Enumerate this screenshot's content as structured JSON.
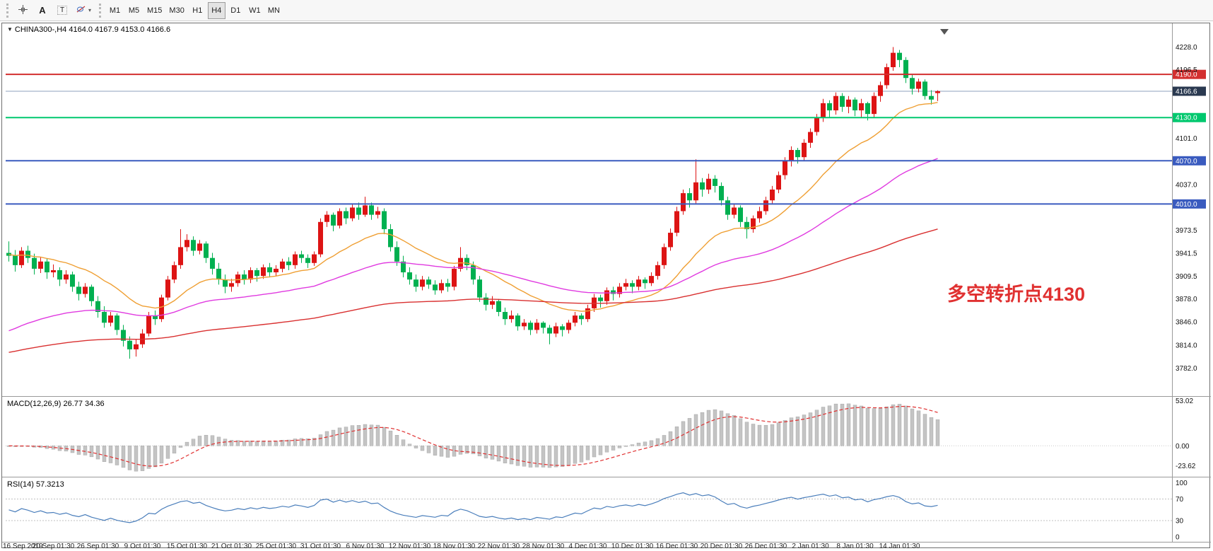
{
  "toolbar": {
    "tools": [
      {
        "name": "crosshair-tool"
      },
      {
        "name": "text-tool",
        "label": "A"
      },
      {
        "name": "label-tool",
        "label": "T"
      },
      {
        "name": "shapes-tool"
      }
    ],
    "timeframes": [
      "M1",
      "M5",
      "M15",
      "M30",
      "H1",
      "H4",
      "D1",
      "W1",
      "MN"
    ],
    "active_timeframe": "H4",
    "dropdown_arrow": "▾"
  },
  "chart": {
    "title_symbol": "CHINA300-,H4",
    "title_ohlc": "4164.0 4167.9 4153.0 4166.6",
    "collapse_arrow": "▼",
    "annotation": {
      "text": "多空转折点4130",
      "color": "#e03131"
    }
  },
  "chart_data": {
    "type": "candlestick",
    "symbol": "CHINA300-,H4",
    "timeframe": "H4",
    "current_ohlc": {
      "open": 4164.0,
      "high": 4167.9,
      "low": 4153.0,
      "close": 4166.6
    },
    "bull_color": "#dd1414",
    "bear_color": "#00b050",
    "x_labels": [
      "16 Sep 2019",
      "20 Sep 01:30",
      "26 Sep 01:30",
      "9 Oct 01:30",
      "15 Oct 01:30",
      "21 Oct 01:30",
      "25 Oct 01:30",
      "31 Oct 01:30",
      "6 Nov 01:30",
      "12 Nov 01:30",
      "18 Nov 01:30",
      "22 Nov 01:30",
      "28 Nov 01:30",
      "4 Dec 01:30",
      "10 Dec 01:30",
      "16 Dec 01:30",
      "20 Dec 01:30",
      "26 Dec 01:30",
      "2 Jan 01:30",
      "8 Jan 01:30",
      "14 Jan 01:30"
    ],
    "label_every": 7,
    "y_range": [
      3747,
      4256
    ],
    "y_ticks": [
      "4228.0",
      "4196.5",
      "4101.0",
      "4037.0",
      "3973.5",
      "3941.5",
      "3909.5",
      "3878.0",
      "3846.0",
      "3814.0",
      "3782.0"
    ],
    "hlines": [
      {
        "value": 4190.0,
        "label": "4190.0",
        "color": "#d32f2f"
      },
      {
        "value": 4130.0,
        "label": "4130.0",
        "color": "#00c86e"
      },
      {
        "value": 4070.0,
        "label": "4070.0",
        "color": "#3a5bbf"
      },
      {
        "value": 4010.0,
        "label": "4010.0",
        "color": "#3a5bbf"
      }
    ],
    "current_price": {
      "value": 4166.6,
      "label": "4166.6",
      "line_color": "#8fa2bd",
      "tag_bg": "#2a3950"
    },
    "moving_averages": [
      {
        "name": "ema-fast",
        "period": 20,
        "seed": 3940,
        "color": "#ef9f33"
      },
      {
        "name": "ema-mid",
        "period": 55,
        "seed": 3830,
        "color": "#e03ae0"
      },
      {
        "name": "ema-slow",
        "period": 150,
        "seed": 3802,
        "color": "#d93030"
      }
    ],
    "candles": [
      [
        3942,
        3958,
        3930,
        3938
      ],
      [
        3938,
        3946,
        3916,
        3925
      ],
      [
        3925,
        3950,
        3921,
        3945
      ],
      [
        3945,
        3952,
        3928,
        3935
      ],
      [
        3935,
        3941,
        3912,
        3920
      ],
      [
        3920,
        3936,
        3914,
        3930
      ],
      [
        3930,
        3934,
        3906,
        3915
      ],
      [
        3915,
        3926,
        3908,
        3918
      ],
      [
        3918,
        3922,
        3896,
        3905
      ],
      [
        3905,
        3918,
        3899,
        3912
      ],
      [
        3912,
        3916,
        3888,
        3895
      ],
      [
        3895,
        3902,
        3876,
        3885
      ],
      [
        3885,
        3900,
        3880,
        3895
      ],
      [
        3895,
        3898,
        3868,
        3875
      ],
      [
        3875,
        3882,
        3852,
        3860
      ],
      [
        3860,
        3868,
        3838,
        3845
      ],
      [
        3845,
        3860,
        3840,
        3855
      ],
      [
        3855,
        3858,
        3828,
        3835
      ],
      [
        3835,
        3842,
        3812,
        3820
      ],
      [
        3820,
        3826,
        3795,
        3808
      ],
      [
        3808,
        3822,
        3798,
        3815
      ],
      [
        3815,
        3836,
        3810,
        3830
      ],
      [
        3830,
        3860,
        3826,
        3855
      ],
      [
        3855,
        3862,
        3842,
        3850
      ],
      [
        3850,
        3884,
        3846,
        3880
      ],
      [
        3880,
        3910,
        3876,
        3905
      ],
      [
        3905,
        3930,
        3900,
        3925
      ],
      [
        3925,
        3975,
        3920,
        3950
      ],
      [
        3950,
        3968,
        3944,
        3960
      ],
      [
        3960,
        3965,
        3938,
        3945
      ],
      [
        3945,
        3960,
        3940,
        3955
      ],
      [
        3955,
        3958,
        3928,
        3935
      ],
      [
        3935,
        3942,
        3912,
        3920
      ],
      [
        3920,
        3928,
        3898,
        3905
      ],
      [
        3905,
        3912,
        3886,
        3895
      ],
      [
        3895,
        3906,
        3888,
        3900
      ],
      [
        3900,
        3916,
        3895,
        3912
      ],
      [
        3912,
        3918,
        3898,
        3905
      ],
      [
        3905,
        3922,
        3900,
        3918
      ],
      [
        3918,
        3921,
        3902,
        3910
      ],
      [
        3910,
        3926,
        3906,
        3922
      ],
      [
        3922,
        3928,
        3908,
        3915
      ],
      [
        3915,
        3925,
        3910,
        3920
      ],
      [
        3920,
        3934,
        3915,
        3930
      ],
      [
        3930,
        3936,
        3918,
        3925
      ],
      [
        3925,
        3944,
        3920,
        3940
      ],
      [
        3940,
        3945,
        3928,
        3935
      ],
      [
        3935,
        3940,
        3921,
        3928
      ],
      [
        3928,
        3944,
        3924,
        3940
      ],
      [
        3940,
        3990,
        3936,
        3985
      ],
      [
        3985,
        4000,
        3978,
        3995
      ],
      [
        3995,
        3998,
        3972,
        3980
      ],
      [
        3980,
        4004,
        3976,
        4000
      ],
      [
        4000,
        4005,
        3982,
        3990
      ],
      [
        3990,
        4010,
        3986,
        4005
      ],
      [
        4005,
        4012,
        3988,
        3995
      ],
      [
        3995,
        4020,
        3992,
        4008
      ],
      [
        4008,
        4012,
        3988,
        3995
      ],
      [
        3995,
        4006,
        3990,
        4000
      ],
      [
        4000,
        4004,
        3968,
        3975
      ],
      [
        3975,
        3982,
        3944,
        3950
      ],
      [
        3950,
        3958,
        3924,
        3930
      ],
      [
        3930,
        3938,
        3908,
        3915
      ],
      [
        3915,
        3922,
        3898,
        3905
      ],
      [
        3905,
        3912,
        3888,
        3895
      ],
      [
        3895,
        3910,
        3890,
        3905
      ],
      [
        3905,
        3909,
        3892,
        3898
      ],
      [
        3898,
        3904,
        3884,
        3890
      ],
      [
        3890,
        3905,
        3886,
        3900
      ],
      [
        3900,
        3906,
        3888,
        3895
      ],
      [
        3895,
        3924,
        3890,
        3920
      ],
      [
        3920,
        3950,
        3916,
        3935
      ],
      [
        3935,
        3940,
        3918,
        3925
      ],
      [
        3925,
        3930,
        3898,
        3905
      ],
      [
        3905,
        3910,
        3874,
        3880
      ],
      [
        3880,
        3886,
        3862,
        3870
      ],
      [
        3870,
        3882,
        3864,
        3875
      ],
      [
        3875,
        3878,
        3854,
        3860
      ],
      [
        3860,
        3866,
        3842,
        3850
      ],
      [
        3850,
        3862,
        3845,
        3855
      ],
      [
        3855,
        3858,
        3834,
        3840
      ],
      [
        3840,
        3850,
        3835,
        3845
      ],
      [
        3845,
        3848,
        3828,
        3835
      ],
      [
        3835,
        3850,
        3830,
        3845
      ],
      [
        3845,
        3847,
        3830,
        3838
      ],
      [
        3838,
        3842,
        3815,
        3830
      ],
      [
        3830,
        3845,
        3825,
        3840
      ],
      [
        3840,
        3843,
        3826,
        3835
      ],
      [
        3835,
        3849,
        3830,
        3845
      ],
      [
        3845,
        3860,
        3840,
        3855
      ],
      [
        3855,
        3858,
        3842,
        3850
      ],
      [
        3850,
        3870,
        3846,
        3865
      ],
      [
        3865,
        3885,
        3860,
        3880
      ],
      [
        3880,
        3884,
        3866,
        3875
      ],
      [
        3875,
        3894,
        3870,
        3890
      ],
      [
        3890,
        3895,
        3876,
        3885
      ],
      [
        3885,
        3900,
        3880,
        3895
      ],
      [
        3895,
        3906,
        3890,
        3900
      ],
      [
        3900,
        3904,
        3886,
        3895
      ],
      [
        3895,
        3910,
        3890,
        3905
      ],
      [
        3905,
        3908,
        3892,
        3900
      ],
      [
        3900,
        3915,
        3896,
        3910
      ],
      [
        3910,
        3930,
        3905,
        3925
      ],
      [
        3925,
        3955,
        3920,
        3950
      ],
      [
        3950,
        3976,
        3945,
        3970
      ],
      [
        3970,
        4006,
        3965,
        4000
      ],
      [
        4000,
        4030,
        3995,
        4025
      ],
      [
        4025,
        4032,
        4005,
        4015
      ],
      [
        4015,
        4072,
        4010,
        4040
      ],
      [
        4040,
        4046,
        4020,
        4030
      ],
      [
        4030,
        4052,
        4024,
        4045
      ],
      [
        4045,
        4050,
        4026,
        4035
      ],
      [
        4035,
        4040,
        4008,
        4015
      ],
      [
        4015,
        4020,
        3988,
        3995
      ],
      [
        3995,
        4010,
        3990,
        4005
      ],
      [
        4005,
        4008,
        3978,
        3985
      ],
      [
        3985,
        3992,
        3962,
        3975
      ],
      [
        3975,
        3994,
        3970,
        3990
      ],
      [
        3990,
        4006,
        3984,
        4000
      ],
      [
        4000,
        4020,
        3995,
        4015
      ],
      [
        4015,
        4035,
        4010,
        4030
      ],
      [
        4030,
        4055,
        4025,
        4050
      ],
      [
        4050,
        4075,
        4044,
        4070
      ],
      [
        4070,
        4090,
        4062,
        4085
      ],
      [
        4085,
        4088,
        4066,
        4075
      ],
      [
        4075,
        4100,
        4070,
        4095
      ],
      [
        4095,
        4115,
        4088,
        4110
      ],
      [
        4110,
        4135,
        4105,
        4130
      ],
      [
        4130,
        4156,
        4124,
        4150
      ],
      [
        4150,
        4154,
        4130,
        4140
      ],
      [
        4140,
        4165,
        4134,
        4160
      ],
      [
        4160,
        4164,
        4138,
        4145
      ],
      [
        4145,
        4160,
        4136,
        4155
      ],
      [
        4155,
        4158,
        4132,
        4140
      ],
      [
        4140,
        4156,
        4130,
        4150
      ],
      [
        4150,
        4152,
        4126,
        4135
      ],
      [
        4135,
        4165,
        4130,
        4160
      ],
      [
        4160,
        4180,
        4152,
        4175
      ],
      [
        4175,
        4205,
        4170,
        4200
      ],
      [
        4200,
        4228,
        4195,
        4220
      ],
      [
        4220,
        4224,
        4200,
        4210
      ],
      [
        4210,
        4214,
        4178,
        4185
      ],
      [
        4185,
        4190,
        4162,
        4170
      ],
      [
        4170,
        4184,
        4165,
        4180
      ],
      [
        4180,
        4183,
        4155,
        4160
      ],
      [
        4160,
        4168,
        4148,
        4155
      ],
      [
        4164,
        4167.9,
        4153,
        4166.6
      ]
    ],
    "subcharts": [
      {
        "type": "macd",
        "label": "MACD(12,26,9) 26.77 34.36",
        "params": [
          12,
          26,
          9
        ],
        "values_display": [
          26.77,
          34.36
        ],
        "y_ticks": [
          "53.02",
          "0.00",
          "-23.62"
        ],
        "y_range": [
          -33,
          55
        ],
        "histogram_color": "#c4c4c4",
        "signal_color": "#e03131"
      },
      {
        "type": "rsi",
        "label": "RSI(14) 57.3213",
        "period": 14,
        "value_display": 57.3213,
        "levels": [
          70,
          30
        ],
        "y_ticks": [
          "100",
          "70",
          "30",
          "0"
        ],
        "y_range": [
          -4,
          106
        ],
        "line_color": "#4a7ebb"
      }
    ]
  }
}
